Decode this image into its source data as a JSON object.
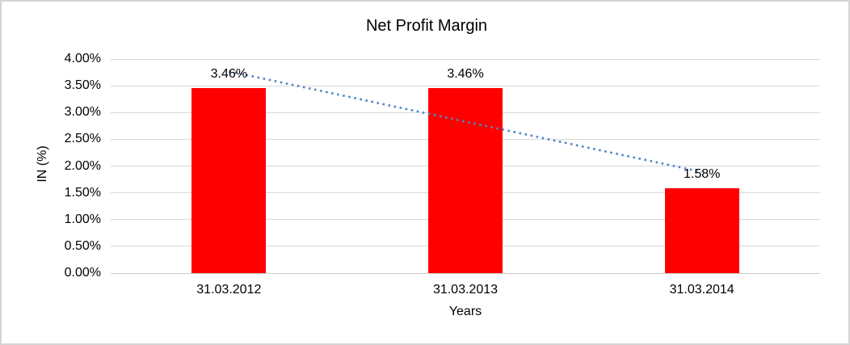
{
  "window": {
    "background_color": "#ffffff",
    "border_color": "#d4d4d4"
  },
  "chart_data": {
    "type": "bar",
    "title": "Net Profit Margin",
    "xlabel": "Years",
    "ylabel": "IN (%)",
    "categories": [
      "31.03.2012",
      "31.03.2013",
      "31.03.2014"
    ],
    "values": [
      3.46,
      3.46,
      1.58
    ],
    "data_labels": [
      "3.46%",
      "3.46%",
      "1.58%"
    ],
    "ylim": [
      0,
      4
    ],
    "y_ticks": [
      {
        "value": 4.0,
        "label": "4.00%"
      },
      {
        "value": 3.5,
        "label": "3.50%"
      },
      {
        "value": 3.0,
        "label": "3.00%"
      },
      {
        "value": 2.5,
        "label": "2.50%"
      },
      {
        "value": 2.0,
        "label": "2.00%"
      },
      {
        "value": 1.5,
        "label": "1.50%"
      },
      {
        "value": 1.0,
        "label": "1.00%"
      },
      {
        "value": 0.5,
        "label": "0.50%"
      },
      {
        "value": 0.0,
        "label": "0.00%"
      }
    ],
    "grid": true,
    "legend": "none",
    "bar_color": "#ff0000",
    "gridline_color": "#d9d9d9",
    "text_color": "#000000",
    "trendline": {
      "type": "linear",
      "style": "dotted",
      "color": "#4f86c6",
      "start_value": 3.77,
      "end_value": 1.89
    }
  }
}
